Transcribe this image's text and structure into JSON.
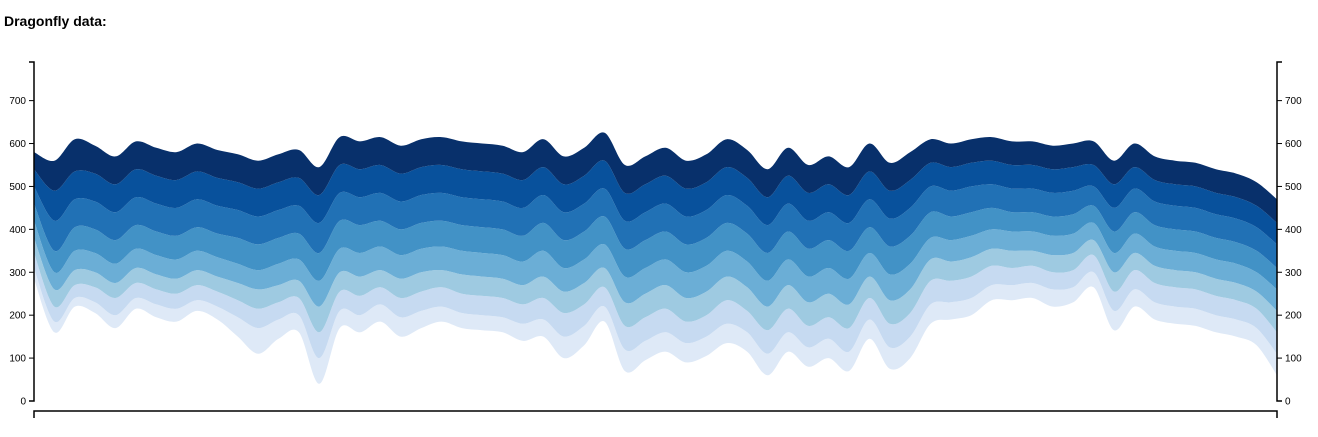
{
  "chart_data": {
    "type": "area",
    "title": "Dragonfly data:",
    "xlabel": "",
    "ylabel": "",
    "ylim": [
      0,
      790
    ],
    "yticks": [
      0,
      100,
      200,
      300,
      400,
      500,
      600,
      700
    ],
    "grid": false,
    "legend": "none",
    "colors": [
      "#ffffff",
      "#dee9f7",
      "#c6daf1",
      "#9ecae1",
      "#6baed6",
      "#4292c6",
      "#2171b5",
      "#08519c",
      "#08306b"
    ],
    "x": [
      0,
      1,
      2,
      3,
      4,
      5,
      6,
      7,
      8,
      9,
      10,
      11,
      12,
      13,
      14,
      15,
      16,
      17,
      18,
      19,
      20,
      21,
      22,
      23,
      24,
      25,
      26,
      27,
      28,
      29,
      30,
      31,
      32,
      33,
      34,
      35,
      36,
      37,
      38,
      39,
      40,
      41,
      42,
      43,
      44,
      45,
      46,
      47,
      48,
      49,
      50,
      51,
      52,
      53,
      54,
      55,
      56,
      57,
      58,
      59,
      60,
      61
    ],
    "boundaries": [
      [
        285,
        160,
        220,
        205,
        170,
        215,
        195,
        185,
        210,
        190,
        150,
        110,
        145,
        160,
        40,
        170,
        160,
        185,
        150,
        170,
        185,
        170,
        165,
        160,
        140,
        150,
        100,
        130,
        185,
        70,
        95,
        115,
        90,
        105,
        135,
        115,
        60,
        115,
        80,
        100,
        70,
        145,
        75,
        100,
        180,
        190,
        200,
        235,
        235,
        240,
        220,
        230,
        265,
        165,
        220,
        190,
        180,
        175,
        160,
        150,
        130,
        60
      ],
      [
        310,
        185,
        240,
        230,
        200,
        240,
        225,
        215,
        235,
        220,
        195,
        170,
        190,
        200,
        100,
        210,
        200,
        225,
        195,
        210,
        220,
        205,
        200,
        195,
        180,
        190,
        150,
        175,
        220,
        120,
        140,
        160,
        135,
        150,
        180,
        160,
        110,
        160,
        125,
        145,
        115,
        190,
        125,
        150,
        225,
        230,
        240,
        270,
        270,
        275,
        260,
        265,
        300,
        210,
        260,
        230,
        220,
        215,
        200,
        190,
        170,
        110
      ],
      [
        345,
        220,
        270,
        265,
        240,
        275,
        260,
        250,
        270,
        255,
        235,
        215,
        230,
        240,
        160,
        255,
        245,
        265,
        240,
        255,
        265,
        250,
        245,
        240,
        225,
        240,
        205,
        225,
        265,
        175,
        195,
        215,
        185,
        200,
        235,
        210,
        165,
        215,
        175,
        195,
        170,
        240,
        180,
        205,
        280,
        280,
        290,
        315,
        310,
        315,
        300,
        305,
        340,
        255,
        305,
        275,
        265,
        260,
        245,
        235,
        215,
        160
      ],
      [
        380,
        260,
        305,
        300,
        275,
        310,
        295,
        285,
        305,
        290,
        275,
        260,
        270,
        280,
        220,
        300,
        290,
        305,
        285,
        300,
        305,
        295,
        290,
        285,
        270,
        290,
        255,
        275,
        310,
        230,
        250,
        270,
        240,
        255,
        290,
        265,
        220,
        270,
        230,
        250,
        225,
        290,
        235,
        260,
        330,
        325,
        335,
        355,
        350,
        350,
        340,
        345,
        375,
        300,
        345,
        315,
        305,
        300,
        285,
        275,
        255,
        210
      ],
      [
        420,
        300,
        350,
        345,
        320,
        355,
        340,
        330,
        350,
        335,
        320,
        305,
        320,
        330,
        280,
        355,
        345,
        360,
        340,
        355,
        360,
        350,
        345,
        340,
        325,
        350,
        310,
        330,
        365,
        290,
        310,
        330,
        300,
        315,
        350,
        325,
        280,
        330,
        290,
        310,
        285,
        345,
        295,
        320,
        380,
        375,
        385,
        400,
        395,
        395,
        385,
        390,
        415,
        345,
        390,
        360,
        350,
        345,
        330,
        320,
        300,
        260
      ],
      [
        460,
        350,
        405,
        400,
        375,
        410,
        395,
        385,
        405,
        390,
        380,
        365,
        380,
        390,
        345,
        420,
        410,
        420,
        400,
        415,
        420,
        410,
        405,
        400,
        385,
        415,
        375,
        395,
        430,
        355,
        375,
        395,
        365,
        380,
        415,
        390,
        345,
        395,
        355,
        375,
        350,
        405,
        360,
        385,
        440,
        430,
        440,
        450,
        440,
        440,
        430,
        435,
        455,
        395,
        440,
        410,
        400,
        395,
        380,
        370,
        350,
        310
      ],
      [
        500,
        420,
        470,
        465,
        440,
        475,
        460,
        450,
        470,
        455,
        445,
        430,
        445,
        455,
        415,
        485,
        475,
        485,
        465,
        480,
        485,
        475,
        470,
        465,
        450,
        480,
        440,
        460,
        495,
        420,
        440,
        460,
        430,
        445,
        480,
        455,
        410,
        460,
        420,
        440,
        415,
        470,
        425,
        450,
        500,
        490,
        500,
        505,
        495,
        495,
        485,
        490,
        500,
        450,
        495,
        465,
        455,
        450,
        435,
        425,
        405,
        365
      ],
      [
        540,
        490,
        535,
        530,
        505,
        540,
        525,
        515,
        535,
        520,
        510,
        495,
        510,
        520,
        480,
        550,
        540,
        550,
        530,
        545,
        550,
        540,
        535,
        530,
        515,
        545,
        505,
        525,
        560,
        485,
        505,
        525,
        495,
        510,
        545,
        520,
        475,
        525,
        485,
        505,
        480,
        535,
        490,
        515,
        555,
        545,
        555,
        560,
        550,
        550,
        540,
        545,
        550,
        505,
        545,
        515,
        505,
        500,
        485,
        475,
        455,
        415
      ],
      [
        580,
        560,
        610,
        595,
        570,
        605,
        590,
        580,
        600,
        585,
        575,
        560,
        575,
        585,
        545,
        615,
        605,
        615,
        595,
        610,
        615,
        605,
        600,
        595,
        580,
        610,
        570,
        590,
        625,
        550,
        570,
        590,
        560,
        575,
        610,
        585,
        540,
        590,
        550,
        570,
        545,
        600,
        555,
        580,
        610,
        600,
        610,
        615,
        605,
        605,
        595,
        600,
        605,
        560,
        600,
        570,
        560,
        555,
        540,
        530,
        510,
        470
      ]
    ]
  }
}
